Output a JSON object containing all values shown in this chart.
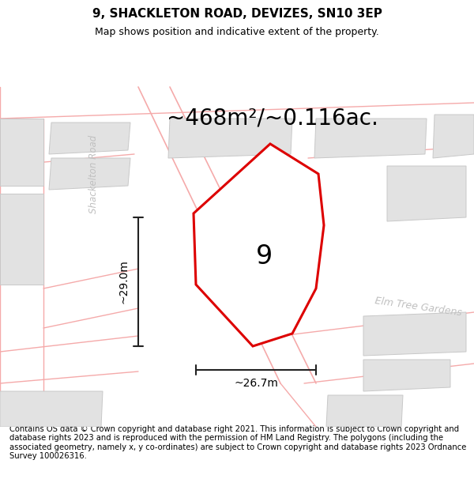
{
  "title_line1": "9, SHACKLETON ROAD, DEVIZES, SN10 3EP",
  "title_line2": "Map shows position and indicative extent of the property.",
  "area_label": "~468m²/~0.116ac.",
  "height_label": "~29.0m",
  "width_label": "~26.7m",
  "number_label": "9",
  "road_label_diag": "Shackelton Road",
  "road_label_vert": "Shackelton Road",
  "elm_tree_label": "Elm Tree Gardens",
  "footer_text": "Contains OS data © Crown copyright and database right 2021. This information is subject to Crown copyright and database rights 2023 and is reproduced with the permission of HM Land Registry. The polygons (including the associated geometry, namely x, y co-ordinates) are subject to Crown copyright and database rights 2023 Ordnance Survey 100026316.",
  "bg_color": "#ffffff",
  "map_bg": "#ffffff",
  "building_fill": "#e2e2e2",
  "building_edge": "#c8c8c8",
  "street_line_color": "#f5aaaa",
  "property_fill": "#ffffff",
  "property_edge": "#dd0000",
  "dim_line_color": "#222222",
  "text_color": "#000000",
  "road_text_color": "#c0c0c0",
  "title_fontsize": 11,
  "subtitle_fontsize": 9,
  "area_fontsize": 20,
  "dim_fontsize": 10,
  "number_fontsize": 24,
  "footer_fontsize": 7.2
}
